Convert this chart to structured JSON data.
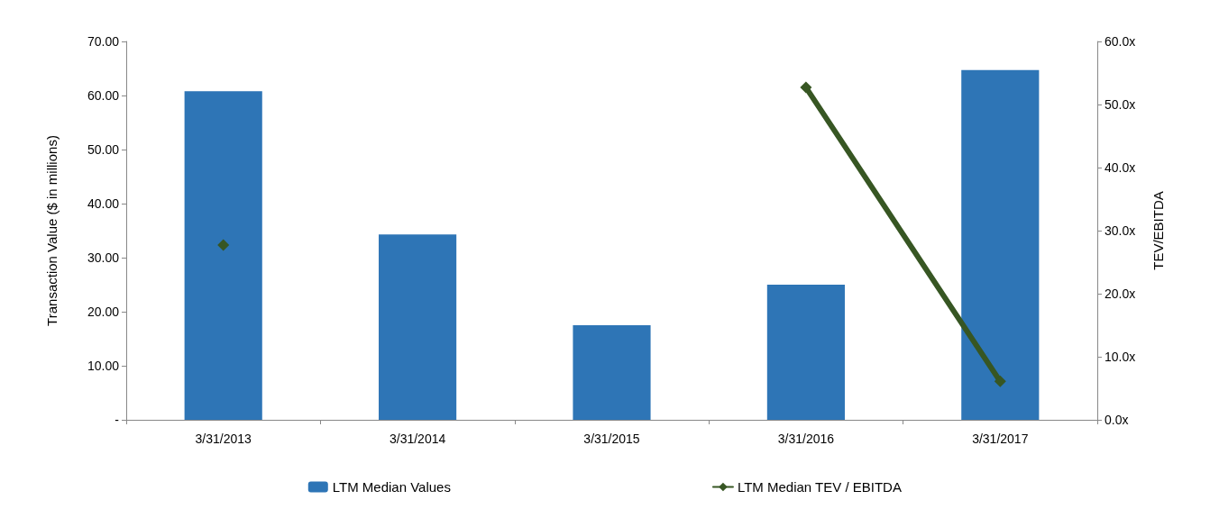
{
  "chart_data": {
    "type": "bar",
    "ylabel": "Transaction Value ($ in millions)",
    "y2label": "TEV/EBITDA",
    "categories": [
      "3/31/2013",
      "3/31/2014",
      "3/31/2015",
      "3/31/2016",
      "3/31/2017"
    ],
    "series": [
      {
        "name": "LTM Median Values",
        "color": "#2e75b6",
        "values": [
          60.8,
          34.3,
          17.5,
          25.0,
          64.7
        ]
      },
      {
        "name": "LTM Median TEV / EBITDA",
        "type": "line",
        "axis": "y2",
        "color": "#375623",
        "marker": "diamond",
        "values": [
          27.7,
          null,
          null,
          52.7,
          6.1
        ]
      }
    ],
    "ylim": [
      0,
      70
    ],
    "yticks": [
      {
        "value": 0,
        "label": "-"
      },
      {
        "value": 10,
        "label": "10.00"
      },
      {
        "value": 20,
        "label": "20.00"
      },
      {
        "value": 30,
        "label": "30.00"
      },
      {
        "value": 40,
        "label": "40.00"
      },
      {
        "value": 50,
        "label": "50.00"
      },
      {
        "value": 60,
        "label": "60.00"
      },
      {
        "value": 70,
        "label": "70.00"
      }
    ],
    "y2lim": [
      0,
      60
    ],
    "y2ticks": [
      {
        "value": 0,
        "label": "0.0x"
      },
      {
        "value": 10,
        "label": "10.0x"
      },
      {
        "value": 20,
        "label": "20.0x"
      },
      {
        "value": 30,
        "label": "30.0x"
      },
      {
        "value": 40,
        "label": "40.0x"
      },
      {
        "value": 50,
        "label": "50.0x"
      },
      {
        "value": 60,
        "label": "60.0x"
      }
    ],
    "grid": false,
    "legend": "bottom"
  }
}
